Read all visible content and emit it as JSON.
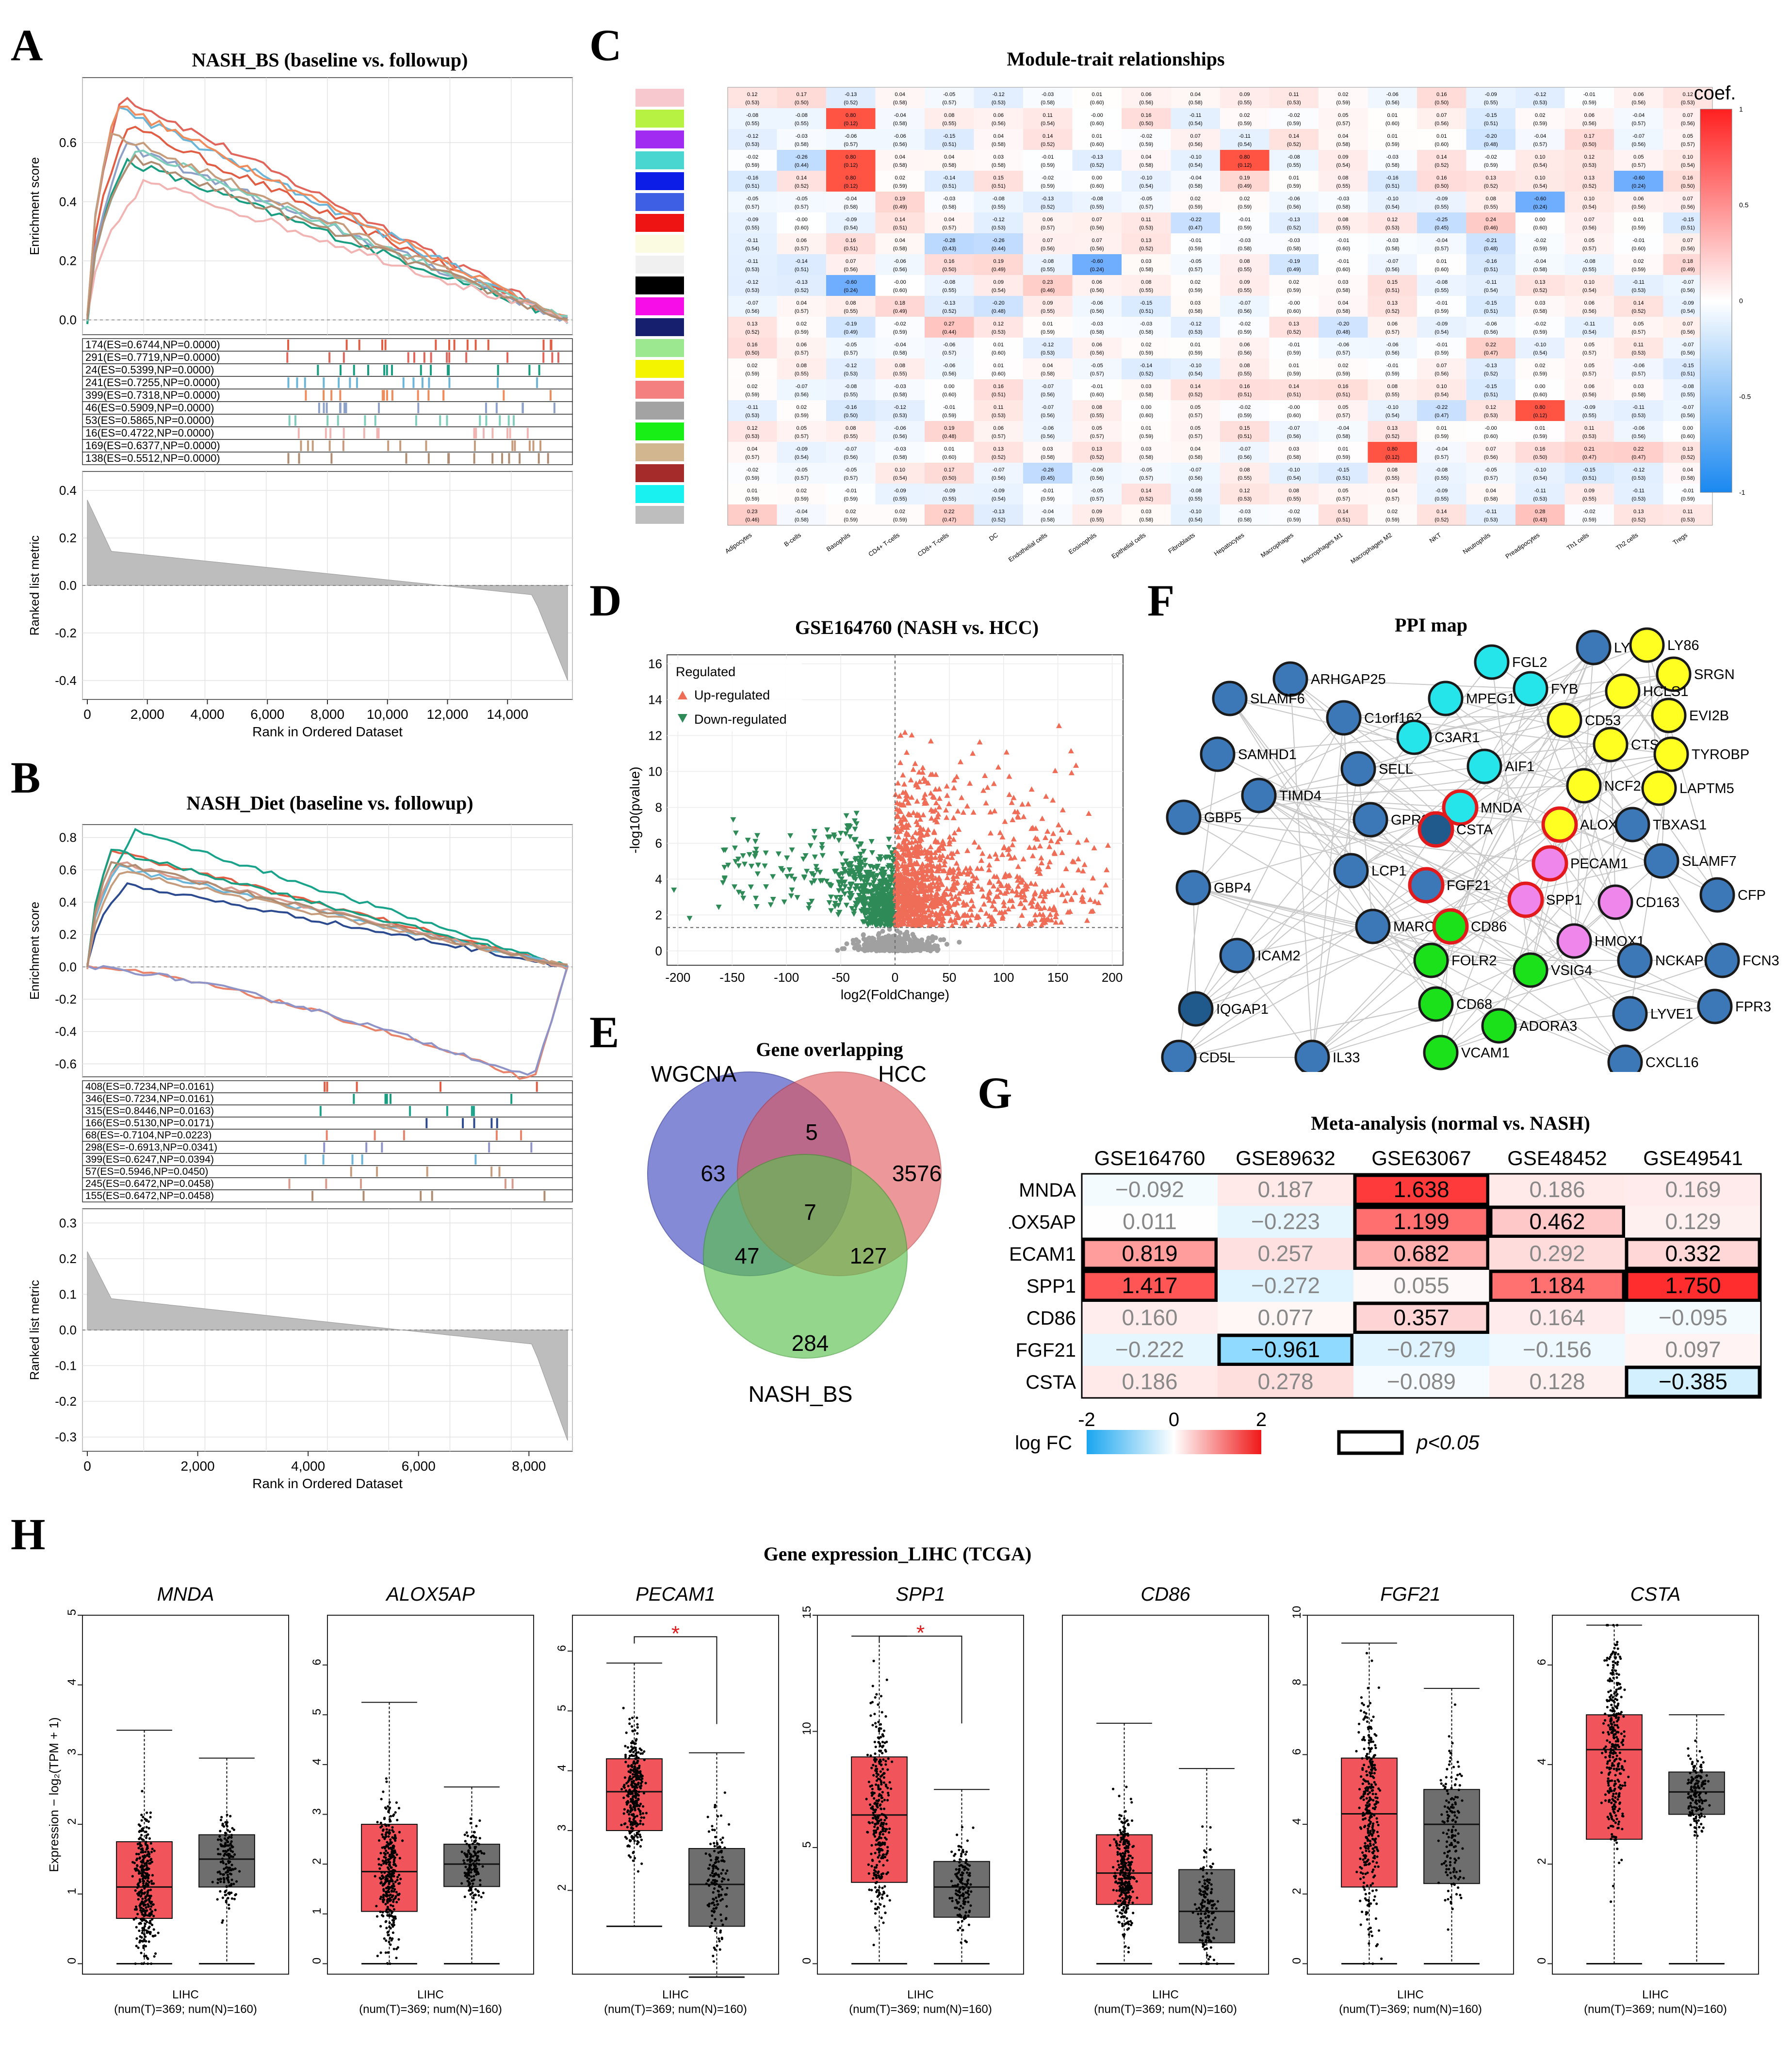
{
  "panels": {
    "A": {
      "letter": "A",
      "title": "NASH_BS (baseline vs. followup)",
      "ylabel_top": "Enrichment score",
      "ylabel_bottom": "Ranked list metric",
      "xlabel": "Rank in Ordered Dataset",
      "legend": [
        "174(ES=0.6744,NP=0.0000)",
        "291(ES=0.7719,NP=0.0000)",
        "24(ES=0.5399,NP=0.0000)",
        "241(ES=0.7255,NP=0.0000)",
        "399(ES=0.7318,NP=0.0000)",
        "46(ES=0.5909,NP=0.0000)",
        "53(ES=0.5865,NP=0.0000)",
        "16(ES=0.4722,NP=0.0000)",
        "169(ES=0.6377,NP=0.0000)",
        "138(ES=0.5512,NP=0.0000)"
      ],
      "top_ticks": [
        "0.0",
        "0.2",
        "0.4",
        "0.6"
      ],
      "bottom_ticks": [
        "0.4",
        "0.2",
        "0.0",
        "-0.2",
        "-0.4"
      ],
      "x_ticks": [
        "0",
        "2,000",
        "4,000",
        "6,000",
        "8,000",
        "10,000",
        "12,000",
        "14,000"
      ]
    },
    "B": {
      "letter": "B",
      "title": "NASH_Diet (baseline vs. followup)",
      "ylabel_top": "Enrichment score",
      "ylabel_bottom": "Ranked list metric",
      "xlabel": "Rank in Ordered Dataset",
      "legend": [
        "408(ES=0.7234,NP=0.0161)",
        "346(ES=0.7234,NP=0.0161)",
        "315(ES=0.8446,NP=0.0163)",
        "166(ES=0.5130,NP=0.0171)",
        "68(ES=-0.7104,NP=0.0223)",
        "298(ES=-0.6913,NP=0.0341)",
        "399(ES=0.6247,NP=0.0394)",
        "57(ES=0.5946,NP=0.0450)",
        "245(ES=0.6472,NP=0.0458)",
        "155(ES=0.6472,NP=0.0458)"
      ],
      "top_ticks": [
        "0.8",
        "0.6",
        "0.4",
        "0.2",
        "0.0",
        "-0.2",
        "-0.4",
        "-0.6"
      ],
      "bottom_ticks": [
        "0.3",
        "0.2",
        "0.1",
        "0.0",
        "-0.1",
        "-0.2",
        "-0.3"
      ],
      "x_ticks": [
        "0",
        "2,000",
        "4,000",
        "6,000",
        "8,000"
      ]
    },
    "C": {
      "letter": "C",
      "title": "Module-trait relationships",
      "legend_title": "coef.",
      "scale": [
        "1",
        "0.5",
        "0",
        "-0.5",
        "-1"
      ],
      "traits": [
        "Adipocytes",
        "B-cells",
        "Basophils",
        "CD4+ T-cells",
        "CD8+ T-cells",
        "DC",
        "Endothelial cells",
        "Eosinophils",
        "Epithelial cells",
        "Fibroblasts",
        "Hepatocytes",
        "Macrophages",
        "Macrophages M1",
        "Macrophages M2",
        "NKT",
        "Neutrophils",
        "Preadipocytes",
        "Th1 cells",
        "Th2 cells",
        "Tregs"
      ]
    },
    "D": {
      "letter": "D",
      "title": "GSE164760 (NASH vs. HCC)",
      "legend_title": "Regulated",
      "legend_up": "Up-regulated",
      "legend_down": "Down-regulated",
      "xlabel": "log2(FoldChange)",
      "ylabel": "-log10(pvalue)",
      "x_ticks": [
        "-200",
        "-150",
        "-100",
        "-50",
        "0",
        "50",
        "100",
        "150",
        "200"
      ],
      "y_ticks": [
        "0",
        "2",
        "4",
        "6",
        "8",
        "10",
        "12",
        "14",
        "16"
      ]
    },
    "E": {
      "letter": "E",
      "title": "Gene overlapping",
      "sets": [
        "WGCNA",
        "HCC",
        "NASH_BS"
      ],
      "counts": {
        "w_only": "63",
        "wh": "5",
        "h_only": "3576",
        "all": "7",
        "wn": "47",
        "hn": "127",
        "n_only": "284"
      }
    },
    "F": {
      "letter": "F",
      "title": "PPI map",
      "nodes": [
        {
          "label": "ARHGAP25",
          "t": "b"
        },
        {
          "label": "FGL2",
          "t": "c"
        },
        {
          "label": "LYN",
          "t": "b"
        },
        {
          "label": "LY86",
          "t": "y"
        },
        {
          "label": "SRGN",
          "t": "y"
        },
        {
          "label": "SLAMF6",
          "t": "b"
        },
        {
          "label": "MPEG1",
          "t": "c"
        },
        {
          "label": "FYB",
          "t": "c"
        },
        {
          "label": "HCLS1",
          "t": "y"
        },
        {
          "label": "EVI2B",
          "t": "y"
        },
        {
          "label": "C1orf162",
          "t": "b"
        },
        {
          "label": "CD53",
          "t": "y"
        },
        {
          "label": "SAMHD1",
          "t": "b"
        },
        {
          "label": "C3AR1",
          "t": "c"
        },
        {
          "label": "CTSS",
          "t": "y"
        },
        {
          "label": "TYROBP",
          "t": "y"
        },
        {
          "label": "SELL",
          "t": "b"
        },
        {
          "label": "AIF1",
          "t": "c"
        },
        {
          "label": "NCF2",
          "t": "y"
        },
        {
          "label": "LAPTM5",
          "t": "y"
        },
        {
          "label": "TIMD4",
          "t": "b"
        },
        {
          "label": "MNDA",
          "t": "ch"
        },
        {
          "label": "GBP5",
          "t": "b"
        },
        {
          "label": "GPR34",
          "t": "b"
        },
        {
          "label": "CSTA",
          "t": "dh"
        },
        {
          "label": "ALOX5AP",
          "t": "yh"
        },
        {
          "label": "TBXAS1",
          "t": "b"
        },
        {
          "label": "LCP1",
          "t": "b"
        },
        {
          "label": "FGF21",
          "t": "bh"
        },
        {
          "label": "PECAM1",
          "t": "ph"
        },
        {
          "label": "SLAMF7",
          "t": "b"
        },
        {
          "label": "GBP4",
          "t": "b"
        },
        {
          "label": "SPP1",
          "t": "ph"
        },
        {
          "label": "CD163",
          "t": "p"
        },
        {
          "label": "CFP",
          "t": "b"
        },
        {
          "label": "MARCO",
          "t": "b"
        },
        {
          "label": "CD86",
          "t": "gh"
        },
        {
          "label": "HMOX1",
          "t": "p"
        },
        {
          "label": "ICAM2",
          "t": "b"
        },
        {
          "label": "FOLR2",
          "t": "g"
        },
        {
          "label": "VSIG4",
          "t": "g"
        },
        {
          "label": "NCKAP1L",
          "t": "b"
        },
        {
          "label": "FCN3",
          "t": "b"
        },
        {
          "label": "IQGAP1",
          "t": "d"
        },
        {
          "label": "CD68",
          "t": "g"
        },
        {
          "label": "FPR3",
          "t": "b"
        },
        {
          "label": "CD5L",
          "t": "b"
        },
        {
          "label": "ADORA3",
          "t": "g"
        },
        {
          "label": "LYVE1",
          "t": "b"
        },
        {
          "label": "IL33",
          "t": "b"
        },
        {
          "label": "VCAM1",
          "t": "g"
        },
        {
          "label": "CXCL16",
          "t": "b"
        }
      ]
    },
    "G": {
      "letter": "G",
      "title": "Meta-analysis (normal vs. NASH)",
      "columns": [
        "GSE164760",
        "GSE89632",
        "GSE63067",
        "GSE48452",
        "GSE49541"
      ],
      "rows": [
        {
          "gene": "MNDA",
          "values": [
            "−0.092",
            "0.187",
            "1.638",
            "0.186",
            "0.169"
          ],
          "sig": [
            false,
            false,
            true,
            false,
            false
          ]
        },
        {
          "gene": "ALOX5AP",
          "values": [
            "0.011",
            "−0.223",
            "1.199",
            "0.462",
            "0.129"
          ],
          "sig": [
            false,
            false,
            true,
            true,
            false
          ]
        },
        {
          "gene": "PECAM1",
          "values": [
            "0.819",
            "0.257",
            "0.682",
            "0.292",
            "0.332"
          ],
          "sig": [
            true,
            false,
            true,
            false,
            true
          ]
        },
        {
          "gene": "SPP1",
          "values": [
            "1.417",
            "−0.272",
            "0.055",
            "1.184",
            "1.750"
          ],
          "sig": [
            true,
            false,
            false,
            true,
            true
          ]
        },
        {
          "gene": "CD86",
          "values": [
            "0.160",
            "0.077",
            "0.357",
            "0.164",
            "−0.095"
          ],
          "sig": [
            false,
            false,
            true,
            false,
            false
          ]
        },
        {
          "gene": "FGF21",
          "values": [
            "−0.222",
            "−0.961",
            "−0.279",
            "−0.156",
            "0.097"
          ],
          "sig": [
            false,
            true,
            false,
            false,
            false
          ]
        },
        {
          "gene": "CSTA",
          "values": [
            "0.186",
            "0.278",
            "−0.089",
            "0.128",
            "−0.385"
          ],
          "sig": [
            false,
            false,
            false,
            false,
            true
          ]
        }
      ],
      "scale_label": "log FC",
      "scale_ticks": [
        "-2",
        "0",
        "2"
      ],
      "sig_label": "p<0.05"
    },
    "H": {
      "letter": "H",
      "title": "Gene expression_LIHC (TCGA)",
      "ylabel": "Expression − log₂(TPM + 1)",
      "xlabel": "LIHC",
      "counts": "(num(T)=369; num(N)=160)",
      "genes": [
        {
          "name": "MNDA",
          "ymax": 5,
          "ticks": [
            "0",
            "1",
            "2",
            "3",
            "4",
            "5"
          ],
          "star": false,
          "T": {
            "q1": 0.65,
            "med": 1.1,
            "q3": 1.75,
            "hi": 3.35,
            "top": 4.65
          },
          "N": {
            "q1": 1.1,
            "med": 1.5,
            "q3": 1.85,
            "hi": 2.95,
            "top": 4.2
          }
        },
        {
          "name": "ALOX5AP",
          "ymax": 7,
          "ticks": [
            "0",
            "1",
            "2",
            "3",
            "4",
            "5",
            "6"
          ],
          "star": false,
          "T": {
            "q1": 1.05,
            "med": 1.85,
            "q3": 2.8,
            "hi": 5.25,
            "top": 6.9
          },
          "N": {
            "q1": 1.55,
            "med": 2.0,
            "q3": 2.4,
            "hi": 3.55,
            "top": 4.9
          }
        },
        {
          "name": "PECAM1",
          "ymax": 6.6,
          "ticks": [
            "2",
            "3",
            "4",
            "5",
            "6"
          ],
          "ymin": 0.6,
          "star": true,
          "T": {
            "q1": 3.0,
            "med": 3.65,
            "q3": 4.2,
            "lo": 1.4,
            "hi": 5.8,
            "top": 6.4
          },
          "N": {
            "q1": 1.4,
            "med": 2.1,
            "q3": 2.7,
            "lo": 0.55,
            "hi": 4.3,
            "top": 4.4
          }
        },
        {
          "name": "SPP1",
          "ymax": 15,
          "ticks": [
            "0",
            "5",
            "10",
            "15"
          ],
          "star": true,
          "T": {
            "q1": 3.5,
            "med": 6.4,
            "q3": 8.9,
            "hi": 14.1,
            "top": 14.9
          },
          "N": {
            "q1": 2.0,
            "med": 3.3,
            "q3": 4.4,
            "hi": 7.5,
            "top": 8.6
          }
        },
        {
          "name": "CD86",
          "ymax": 5,
          "ticks": [],
          "star": false,
          "T": {
            "q1": 0.85,
            "med": 1.3,
            "q3": 1.85,
            "hi": 3.45,
            "top": 4.65
          },
          "N": {
            "q1": 0.3,
            "med": 0.75,
            "q3": 1.35,
            "hi": 2.8,
            "top": 3.4
          }
        },
        {
          "name": "FGF21",
          "ymax": 10,
          "ticks": [
            "0",
            "2",
            "4",
            "6",
            "8",
            "10"
          ],
          "star": false,
          "T": {
            "q1": 2.2,
            "med": 4.3,
            "q3": 5.9,
            "hi": 9.2,
            "top": 9.2
          },
          "N": {
            "q1": 2.3,
            "med": 4.0,
            "q3": 5.0,
            "hi": 7.9,
            "top": 7.9
          }
        },
        {
          "name": "CSTA",
          "ymax": 7,
          "ticks": [
            "0",
            "2",
            "4",
            "6"
          ],
          "star": false,
          "T": {
            "q1": 2.5,
            "med": 4.3,
            "q3": 5.0,
            "hi": 6.8,
            "top": 6.8
          },
          "N": {
            "q1": 3.0,
            "med": 3.45,
            "q3": 3.85,
            "hi": 5.0,
            "top": 5.3
          }
        }
      ]
    }
  }
}
